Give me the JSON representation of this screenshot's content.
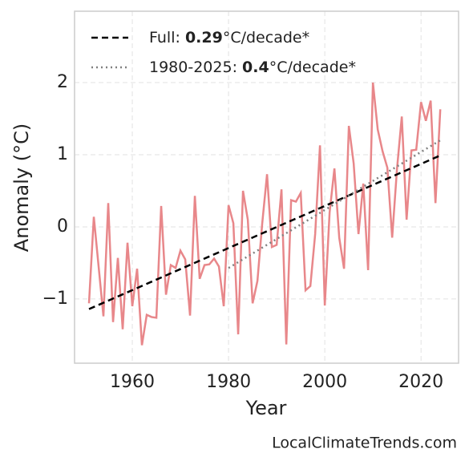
{
  "chart_data": {
    "type": "line",
    "x_label": "Year",
    "y_label": "Anomaly (°C)",
    "xlim": [
      1948,
      2027.8
    ],
    "ylim": [
      -1.89,
      2.99
    ],
    "xticks": [
      1960,
      1980,
      2000,
      2020
    ],
    "yticks": [
      {
        "value": -1,
        "label": "−1"
      },
      0,
      1,
      2
    ],
    "grid": true,
    "legend": "upper left",
    "series": [
      {
        "color": "#e8878a",
        "x": [
          1951,
          1952,
          1953,
          1954,
          1955,
          1956,
          1957,
          1958,
          1959,
          1960,
          1961,
          1962,
          1963,
          1964,
          1965,
          1966,
          1967,
          1968,
          1969,
          1970,
          1971,
          1972,
          1973,
          1974,
          1975,
          1976,
          1977,
          1978,
          1979,
          1980,
          1981,
          1982,
          1983,
          1984,
          1985,
          1986,
          1987,
          1988,
          1989,
          1990,
          1991,
          1992,
          1993,
          1994,
          1995,
          1996,
          1997,
          1998,
          1999,
          2000,
          2001,
          2002,
          2003,
          2004,
          2005,
          2006,
          2007,
          2008,
          2009,
          2010,
          2011,
          2012,
          2013,
          2014,
          2015,
          2016,
          2017,
          2018,
          2019,
          2020,
          2021,
          2022,
          2023,
          2024
        ],
        "values": [
          -1.06,
          0.14,
          -0.55,
          -1.24,
          0.33,
          -1.32,
          -0.43,
          -1.42,
          -0.22,
          -1.1,
          -0.58,
          -1.64,
          -1.22,
          -1.25,
          -1.26,
          0.29,
          -0.94,
          -0.53,
          -0.57,
          -0.33,
          -0.45,
          -1.23,
          0.43,
          -0.72,
          -0.53,
          -0.52,
          -0.44,
          -0.55,
          -1.1,
          0.3,
          0.05,
          -1.49,
          0.5,
          0.1,
          -1.06,
          -0.75,
          0.05,
          0.73,
          -0.28,
          -0.25,
          0.52,
          -1.63,
          0.37,
          0.35,
          0.47,
          -0.88,
          -0.82,
          -0.1,
          1.13,
          -1.09,
          0.2,
          0.81,
          -0.15,
          -0.58,
          1.4,
          0.88,
          -0.1,
          0.6,
          -0.6,
          2.0,
          1.35,
          1.05,
          0.82,
          -0.15,
          0.8,
          1.53,
          0.1,
          1.06,
          1.07,
          1.73,
          1.47,
          1.75,
          0.33,
          1.63
        ]
      },
      {
        "name": "Full:",
        "slope": 0.29,
        "unit": "°C/decade*",
        "color": "#000000",
        "dash": "dashed",
        "x": [
          1951,
          2024
        ],
        "values": [
          -1.14,
          0.99
        ]
      },
      {
        "name": "1980-2025:",
        "slope": 0.4,
        "unit": "°C/decade*",
        "color": "#808080",
        "dash": "dotted",
        "x": [
          1980,
          2024
        ],
        "values": [
          -0.57,
          1.2
        ]
      }
    ],
    "source": "LocalClimateTrends.com"
  }
}
